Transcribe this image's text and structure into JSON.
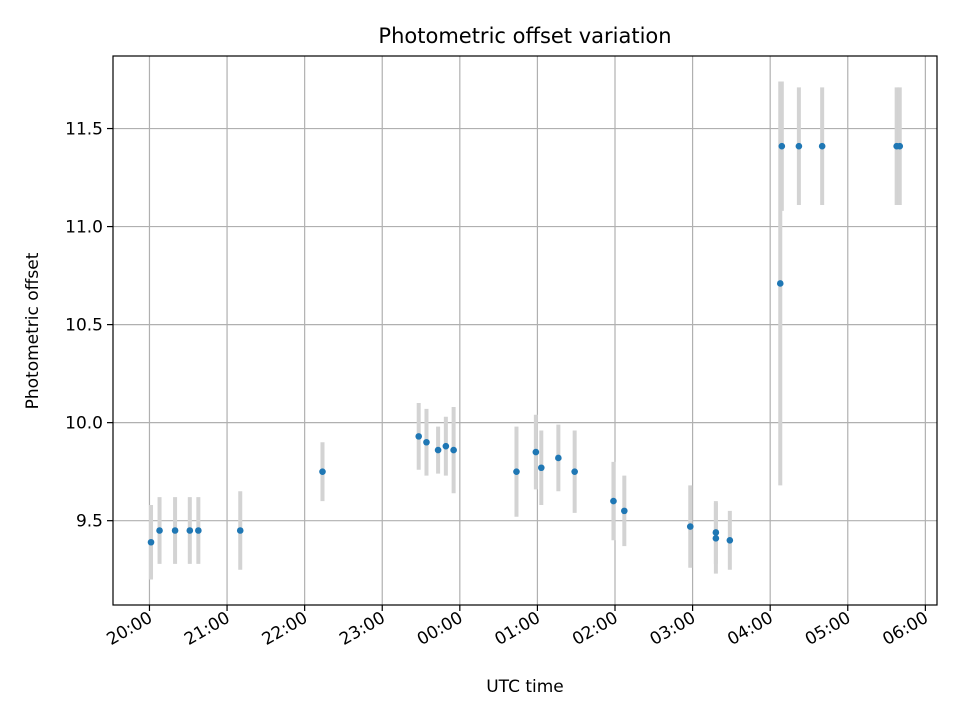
{
  "chart_data": {
    "type": "scatter",
    "title": "Photometric offset variation",
    "xlabel": "UTC time",
    "ylabel": "Photometric offset",
    "x_unit": "hours",
    "x_ticks": [
      {
        "h": 20,
        "label": "20:00"
      },
      {
        "h": 21,
        "label": "21:00"
      },
      {
        "h": 22,
        "label": "22:00"
      },
      {
        "h": 23,
        "label": "23:00"
      },
      {
        "h": 24,
        "label": "00:00"
      },
      {
        "h": 25,
        "label": "01:00"
      },
      {
        "h": 26,
        "label": "02:00"
      },
      {
        "h": 27,
        "label": "03:00"
      },
      {
        "h": 28,
        "label": "04:00"
      },
      {
        "h": 29,
        "label": "05:00"
      },
      {
        "h": 30,
        "label": "06:00"
      }
    ],
    "y_ticks": [
      9.5,
      10.0,
      10.5,
      11.0,
      11.5
    ],
    "y_tick_labels": [
      "9.5",
      "10.0",
      "10.5",
      "11.0",
      "11.5"
    ],
    "xlim": [
      19.53,
      30.15
    ],
    "ylim": [
      9.07,
      11.87
    ],
    "grid": true,
    "marker_color": "#1f77b4",
    "errorbar_color": "#d3d3d3",
    "points": [
      {
        "x": 20.02,
        "y": 9.39,
        "err": 0.19
      },
      {
        "x": 20.13,
        "y": 9.45,
        "err": 0.17
      },
      {
        "x": 20.33,
        "y": 9.45,
        "err": 0.17
      },
      {
        "x": 20.52,
        "y": 9.45,
        "err": 0.17
      },
      {
        "x": 20.63,
        "y": 9.45,
        "err": 0.17
      },
      {
        "x": 21.17,
        "y": 9.45,
        "err": 0.2
      },
      {
        "x": 22.23,
        "y": 9.75,
        "err": 0.15
      },
      {
        "x": 23.47,
        "y": 9.93,
        "err": 0.17
      },
      {
        "x": 23.57,
        "y": 9.9,
        "err": 0.17
      },
      {
        "x": 23.72,
        "y": 9.86,
        "err": 0.12
      },
      {
        "x": 23.82,
        "y": 9.88,
        "err": 0.15
      },
      {
        "x": 23.92,
        "y": 9.86,
        "err": 0.22
      },
      {
        "x": 24.73,
        "y": 9.75,
        "err": 0.23
      },
      {
        "x": 24.98,
        "y": 9.85,
        "err": 0.19
      },
      {
        "x": 25.05,
        "y": 9.77,
        "err": 0.19
      },
      {
        "x": 25.27,
        "y": 9.82,
        "err": 0.17
      },
      {
        "x": 25.48,
        "y": 9.75,
        "err": 0.21
      },
      {
        "x": 25.98,
        "y": 9.6,
        "err": 0.2
      },
      {
        "x": 26.12,
        "y": 9.55,
        "err": 0.18
      },
      {
        "x": 26.97,
        "y": 9.47,
        "err": 0.21
      },
      {
        "x": 27.3,
        "y": 9.41,
        "err": 0.18
      },
      {
        "x": 27.3,
        "y": 9.44,
        "err": 0.16
      },
      {
        "x": 27.48,
        "y": 9.4,
        "err": 0.15
      },
      {
        "x": 28.13,
        "y": 10.71,
        "err": 1.03
      },
      {
        "x": 28.15,
        "y": 11.41,
        "err": 0.33
      },
      {
        "x": 28.37,
        "y": 11.41,
        "err": 0.3
      },
      {
        "x": 28.67,
        "y": 11.41,
        "err": 0.3
      },
      {
        "x": 29.63,
        "y": 11.41,
        "err": 0.3
      },
      {
        "x": 29.67,
        "y": 11.41,
        "err": 0.3
      }
    ]
  }
}
